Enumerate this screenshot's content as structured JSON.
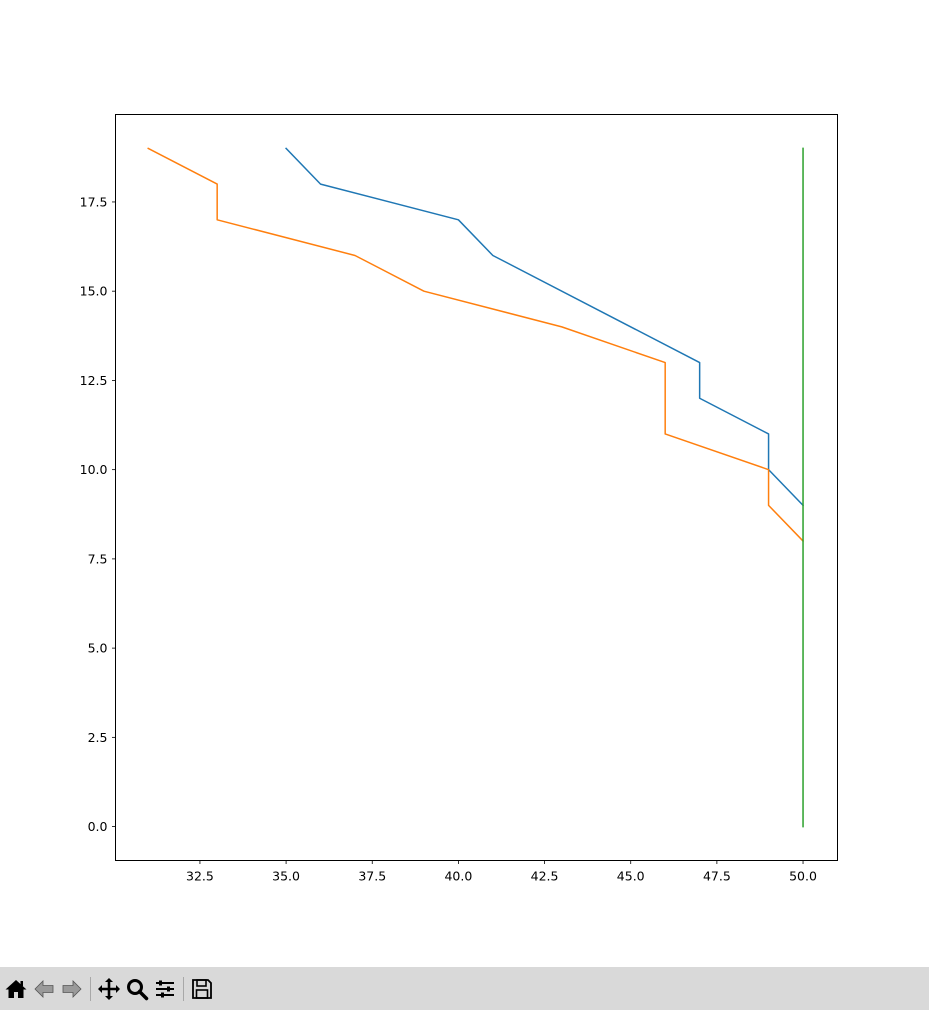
{
  "chart_data": {
    "type": "line",
    "xlim": [
      30.05,
      51.0
    ],
    "ylim": [
      -0.95,
      19.95
    ],
    "x_ticks": [
      "32.5",
      "35.0",
      "37.5",
      "40.0",
      "42.5",
      "45.0",
      "47.5",
      "50.0"
    ],
    "y_ticks": [
      "0.0",
      "2.5",
      "5.0",
      "7.5",
      "10.0",
      "12.5",
      "15.0",
      "17.5"
    ],
    "grid": false,
    "series": [
      {
        "color": "#1f77b4",
        "x": [
          35,
          36,
          40,
          41,
          47,
          47,
          49,
          49,
          50
        ],
        "y": [
          19,
          18,
          17,
          16,
          13,
          12,
          11,
          10,
          9
        ]
      },
      {
        "color": "#ff7f0e",
        "x": [
          31,
          33,
          33,
          37,
          39,
          43,
          46,
          46,
          49,
          49,
          50
        ],
        "y": [
          19,
          18,
          17,
          16,
          15,
          14,
          13,
          11,
          10,
          9,
          8
        ]
      },
      {
        "color": "#2ca02c",
        "x": [
          50,
          50
        ],
        "y": [
          19,
          0
        ]
      }
    ]
  },
  "toolbar": {
    "buttons": [
      {
        "icon": "home-icon"
      },
      {
        "icon": "back-arrow-icon"
      },
      {
        "icon": "forward-arrow-icon"
      },
      {
        "icon": "pan-icon"
      },
      {
        "icon": "zoom-icon"
      },
      {
        "icon": "configure-subplots-icon"
      },
      {
        "icon": "save-icon"
      }
    ]
  }
}
